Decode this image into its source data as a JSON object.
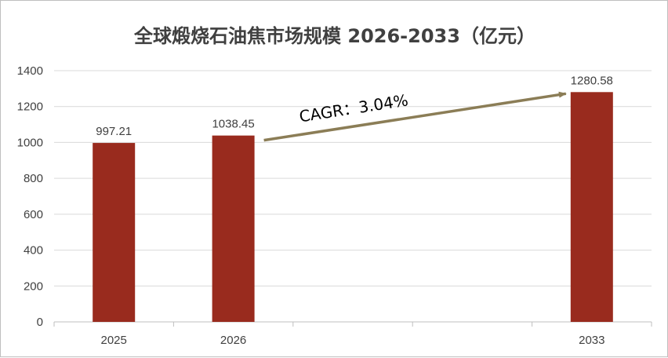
{
  "chart_data": {
    "type": "bar",
    "title": "全球煅烧石油焦市场规模 2026-2033（亿元）",
    "xlabel": "",
    "ylabel": "",
    "categories": [
      "2025",
      "2026",
      "",
      "",
      "2033"
    ],
    "values": [
      997.21,
      1038.45,
      null,
      null,
      1280.58
    ],
    "data_labels": [
      "997.21",
      "1038.45",
      "",
      "",
      "1280.58"
    ],
    "ylim": [
      0,
      1400
    ],
    "yticks": [
      "0",
      "200",
      "400",
      "600",
      "800",
      "1000",
      "1200",
      "1400"
    ],
    "grid": true,
    "legend": "none",
    "annotation": {
      "text": "CAGR：3.04%",
      "from_category": "2026",
      "to_category": "2033"
    },
    "colors": {
      "bar": "#992B1E",
      "arrow": "#8B7D56",
      "grid": "#d9d9d9",
      "text": "#404040"
    }
  }
}
